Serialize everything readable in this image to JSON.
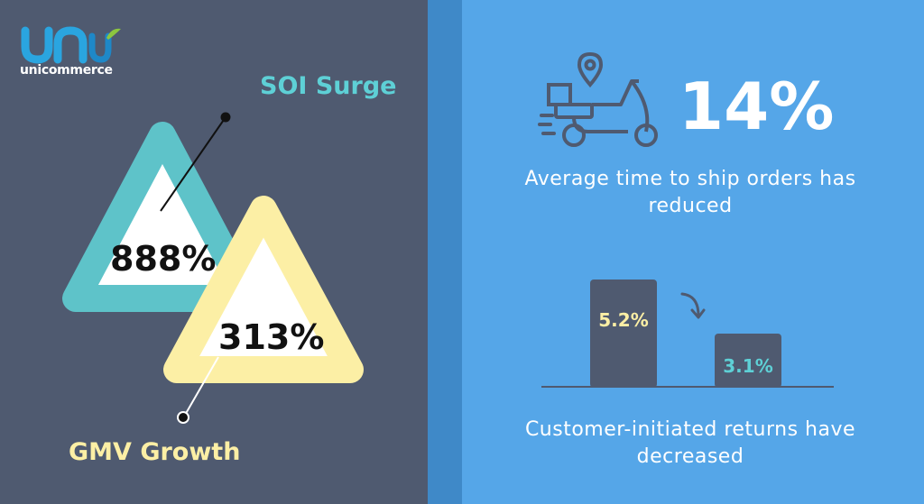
{
  "brand": {
    "name": "unicommerce"
  },
  "soi": {
    "label": "SOI Surge",
    "value": "888%"
  },
  "gmv": {
    "label": "GMV Growth",
    "value": "313%"
  },
  "shipping": {
    "value": "14%",
    "caption": "Average time to ship orders has reduced"
  },
  "returns": {
    "before": "5.2%",
    "after": "3.1%",
    "caption": "Customer-initiated returns have decreased"
  },
  "colors": {
    "left_bg": "#4f5a70",
    "right_bg": "#55a6e8",
    "teal": "#5ed0d6",
    "cream": "#fcefa5",
    "white": "#ffffff"
  },
  "icons": [
    "unicommerce-logo-icon",
    "delivery-scooter-icon",
    "location-pin-icon",
    "curved-arrow-down-icon"
  ]
}
